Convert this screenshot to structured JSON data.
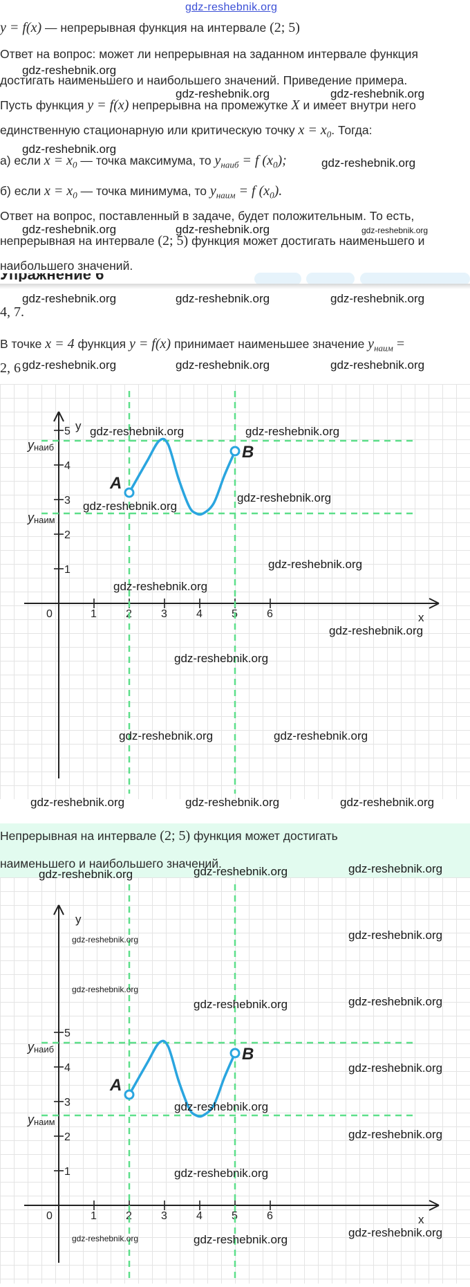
{
  "header": {
    "site_link": "gdz-reshebnik.org"
  },
  "watermark": "gdz-reshebnik.org",
  "line1": {
    "math": "y = f(x)",
    "text": " — непрерывная функция на интервале ",
    "interval": "(2; 5)"
  },
  "q1": {
    "line1": "Ответ на вопрос: может ли непрерывная на заданном интервале функция",
    "line2": "достигать наименьшего и наибольшего значений. Приведение примера."
  },
  "p1": {
    "a1": "Пусть функция ",
    "a2": "y = f(x)",
    "a3": " непрерывна на промежутке ",
    "a4": "X",
    "a5": " и имеет внутри него",
    "b1": "единственную стационарную или критическую точку ",
    "b2": "x = x",
    "b3": "0",
    "b4": ". Тогда:"
  },
  "case_a": {
    "t1": "а) если ",
    "t2": "x = x",
    "t3": "0",
    "t4": " — точка максимума, то ",
    "t5": "y",
    "t6": "наиб",
    "t7": " = f (x",
    "t8": "0",
    "t9": ");"
  },
  "case_b": {
    "t1": "б) если ",
    "t2": "x = x",
    "t3": "0",
    "t4": " — точка минимума, то ",
    "t5": "y",
    "t6": "наим",
    "t7": " = f (x",
    "t8": "0",
    "t9": ")."
  },
  "ans1": {
    "line1": "Ответ на вопрос, поставленный в задаче, будет положительным. То есть,",
    "l2a": "непрерывная на интервале ",
    "l2b": "(2; 5)",
    "l2c": " функция может достигать наименьшего и",
    "line3": "наибольшего значений."
  },
  "cut_heading": "Упражнение 6",
  "value_line": "4, 7.",
  "point_line": {
    "t1": "В точке ",
    "t2": "x = 4",
    "t3": " функция ",
    "t4": "y = f(x)",
    "t5": " принимает наименьшее значение ",
    "t6": "y",
    "t7": "наим",
    "t8": " ="
  },
  "value_line2": "2, 6",
  "conclusion": {
    "l1a": "Непрерывная на интервале ",
    "l1b": "(2; 5)",
    "l1c": " функция может достигать",
    "line2": "наименьшего и наибольшего значений."
  },
  "graph1": {
    "y_axis": "y",
    "x_axis": "x",
    "origin": "0",
    "y_max_label": "yнаиб",
    "y_min_label": "yнаим",
    "point_a": "A",
    "point_b": "B",
    "x_ticks": [
      "1",
      "2",
      "3",
      "4",
      "5",
      "6"
    ],
    "y_ticks": [
      "1",
      "2",
      "3",
      "4",
      "5"
    ]
  },
  "graph2": {
    "y_axis": "y",
    "x_axis": "x",
    "origin": "0",
    "y_max_label": "yнаиб",
    "y_min_label": "yнаим",
    "point_a": "A",
    "point_b": "B",
    "x_ticks": [
      "1",
      "2",
      "3",
      "4",
      "5",
      "6"
    ],
    "y_ticks": [
      "1",
      "2",
      "3",
      "4",
      "5"
    ]
  },
  "chart_data": [
    {
      "type": "line",
      "x": [
        2,
        2.5,
        2.85,
        3.1,
        3.4,
        3.7,
        3.9,
        4.1,
        4.4,
        4.7,
        5.0
      ],
      "y": [
        3.2,
        4.1,
        4.7,
        4.6,
        3.6,
        2.8,
        2.6,
        2.6,
        2.9,
        3.7,
        4.4
      ],
      "xlim": [
        0,
        6.5
      ],
      "ylim": [
        0,
        5.5
      ],
      "hlines": [
        4.7,
        2.6
      ],
      "vlines": [
        2,
        5
      ],
      "points": [
        {
          "label": "A",
          "x": 2,
          "y": 3.2
        },
        {
          "label": "B",
          "x": 5,
          "y": 4.4
        }
      ],
      "curve_color": "#2aa5df",
      "guide_color": "#5ddf8a",
      "grid": true
    },
    {
      "type": "line",
      "x": [
        2,
        2.5,
        2.85,
        3.1,
        3.4,
        3.7,
        3.9,
        4.1,
        4.4,
        4.7,
        5.0
      ],
      "y": [
        3.2,
        4.1,
        4.7,
        4.6,
        3.6,
        2.8,
        2.6,
        2.6,
        2.9,
        3.7,
        4.4
      ],
      "xlim": [
        0,
        6.5
      ],
      "ylim": [
        0,
        5.5
      ],
      "hlines": [
        4.7,
        2.6
      ],
      "vlines": [
        2,
        5
      ],
      "points": [
        {
          "label": "A",
          "x": 2,
          "y": 3.2
        },
        {
          "label": "B",
          "x": 5,
          "y": 4.4
        }
      ],
      "curve_color": "#2aa5df",
      "guide_color": "#5ddf8a",
      "grid": true
    }
  ]
}
